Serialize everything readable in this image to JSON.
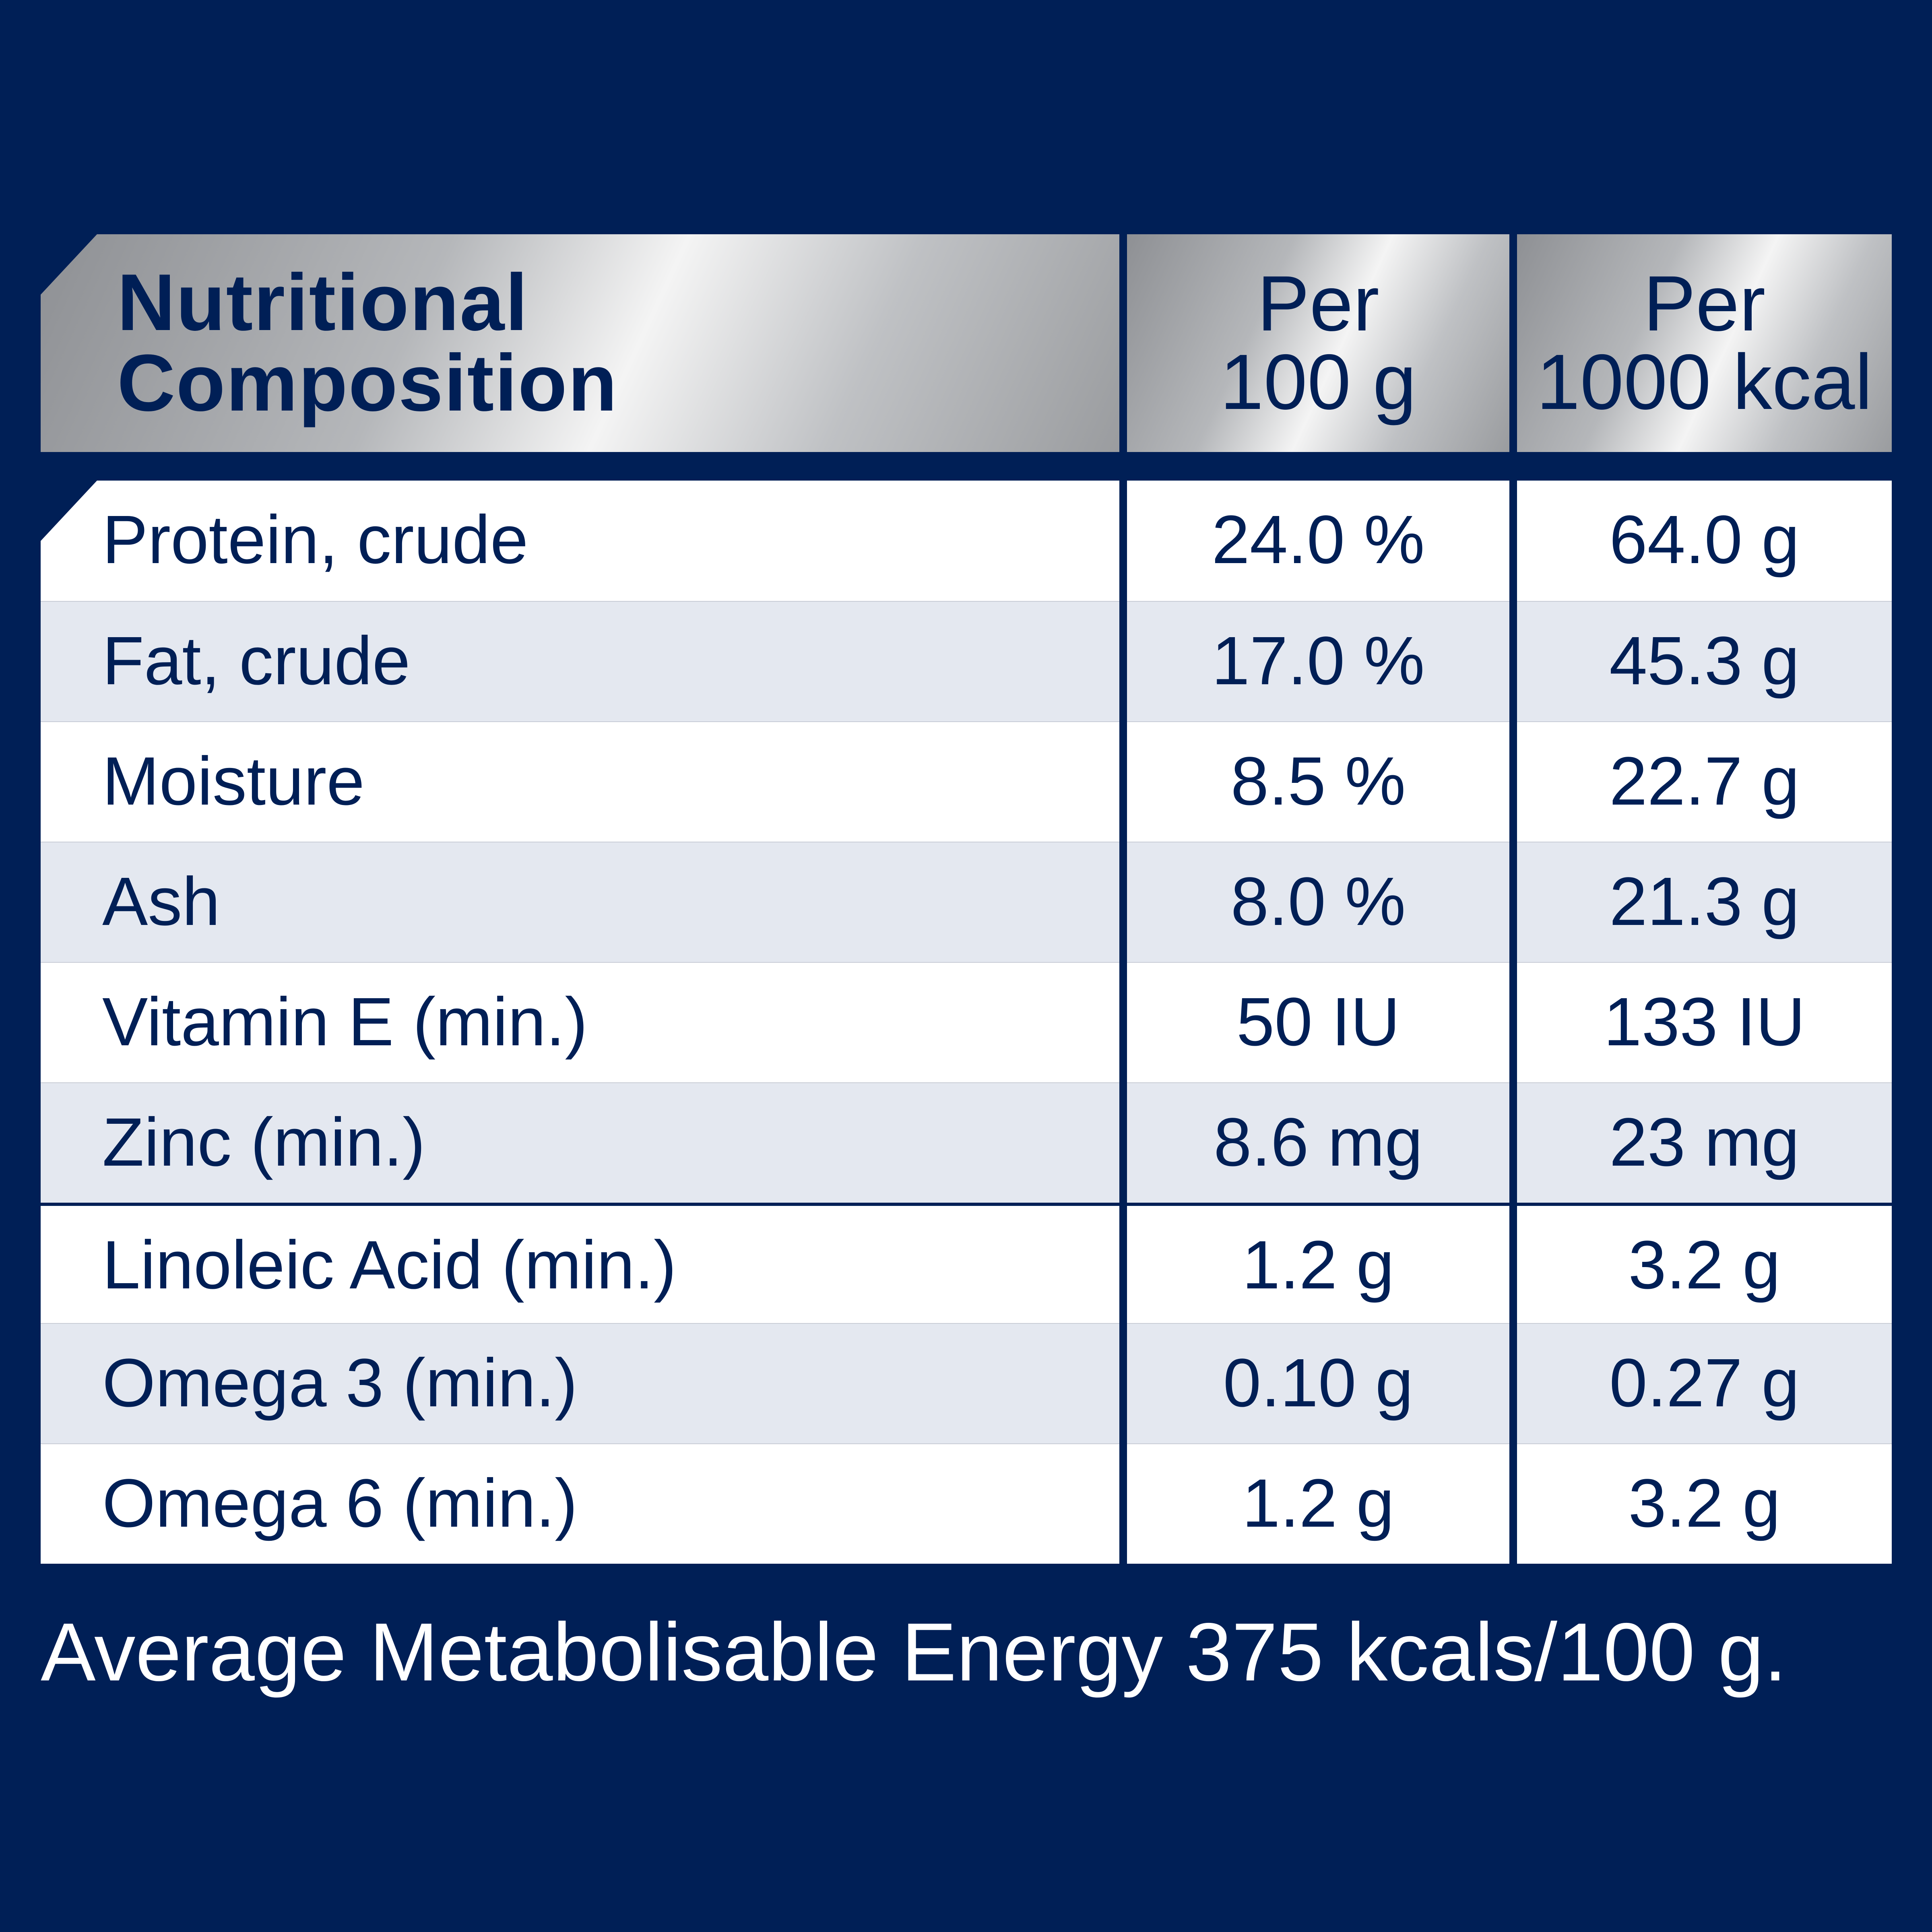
{
  "header": {
    "title_line1": "Nutritional",
    "title_line2": "Composition",
    "col2_line1": "Per",
    "col2_line2": "100 g",
    "col3_line1": "Per",
    "col3_line2": "1000 kcal"
  },
  "rows": [
    {
      "name": "Protein, crude",
      "per100g": "24.0 %",
      "per1000kcal": "64.0 g"
    },
    {
      "name": "Fat, crude",
      "per100g": "17.0 %",
      "per1000kcal": "45.3 g"
    },
    {
      "name": "Moisture",
      "per100g": "8.5 %",
      "per1000kcal": "22.7 g"
    },
    {
      "name": "Ash",
      "per100g": "8.0 %",
      "per1000kcal": "21.3 g"
    },
    {
      "name": "Vitamin E (min.)",
      "per100g": "50 IU",
      "per1000kcal": "133 IU"
    },
    {
      "name": "Zinc (min.)",
      "per100g": "8.6 mg",
      "per1000kcal": "23 mg"
    },
    {
      "name": "Linoleic Acid (min.)",
      "per100g": "1.2 g",
      "per1000kcal": "3.2 g"
    },
    {
      "name": "Omega 3 (min.)",
      "per100g": "0.10 g",
      "per1000kcal": "0.27 g"
    },
    {
      "name": "Omega 6 (min.)",
      "per100g": "1.2 g",
      "per1000kcal": "3.2 g"
    }
  ],
  "footer": "Average Metabolisable Energy 375 kcals/100 g.",
  "colors": {
    "navy": "#001f56",
    "alt_row": "#e4e8f0",
    "white": "#ffffff"
  }
}
